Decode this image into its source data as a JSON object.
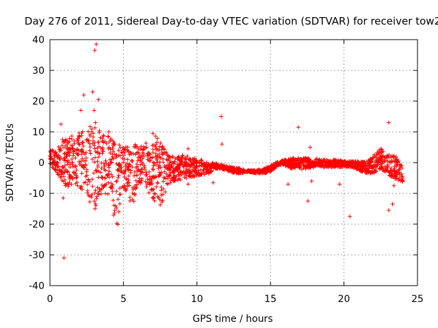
{
  "chart_data": {
    "type": "scatter",
    "title": "Day 276 of 2011, Sidereal Day-to-day VTEC variation (SDTVAR) for receiver tow2",
    "xlabel": "GPS time / hours",
    "ylabel": "SDTVAR / TECUs",
    "xlim": [
      0,
      25
    ],
    "ylim": [
      -40,
      40
    ],
    "xticks": [
      0,
      5,
      10,
      15,
      20,
      25
    ],
    "yticks": [
      -40,
      -30,
      -20,
      -10,
      0,
      10,
      20,
      30,
      40
    ],
    "grid": true,
    "marker": "+",
    "color": "#ff0000",
    "bands": [
      {
        "x": [
          0.0,
          0.4,
          0.8,
          1.2,
          1.6,
          2.0,
          2.4,
          2.8,
          3.2,
          3.6,
          4.0,
          4.4,
          4.6,
          4.8,
          5.2,
          5.6,
          6.0,
          6.4,
          6.8,
          7.2,
          7.6,
          8.0,
          8.5,
          9.0,
          9.5,
          10.0,
          10.5,
          11.0
        ],
        "upper": [
          4.5,
          3.5,
          7.5,
          9.0,
          8.5,
          10.5,
          11.5,
          14.0,
          12.0,
          9.5,
          8.5,
          6.5,
          7.0,
          5.5,
          6.0,
          7.0,
          5.5,
          6.0,
          7.5,
          9.0,
          6.0,
          3.0,
          2.0,
          2.5,
          2.0,
          1.5,
          0.5,
          -0.5
        ],
        "lower": [
          -1.0,
          -3.0,
          -6.0,
          -9.0,
          -7.0,
          -8.0,
          -11.0,
          -14.0,
          -16.0,
          -8.0,
          -13.0,
          -19.0,
          -21.0,
          -12.0,
          -9.0,
          -15.0,
          -8.0,
          -7.0,
          -11.0,
          -13.0,
          -14.5,
          -8.0,
          -6.0,
          -5.5,
          -5.0,
          -4.5,
          -4.0,
          -3.5
        ]
      },
      {
        "x": [
          11.0,
          11.5,
          12.0,
          12.5,
          13.0,
          13.5,
          14.0,
          14.5,
          15.0,
          15.5,
          16.0
        ],
        "upper": [
          0.0,
          -0.5,
          -1.0,
          -1.5,
          -2.0,
          -2.5,
          -2.5,
          -2.0,
          -1.0,
          0.5,
          1.0
        ],
        "lower": [
          -2.0,
          -2.0,
          -2.5,
          -3.5,
          -3.5,
          -3.0,
          -3.5,
          -3.5,
          -3.0,
          -1.0,
          -0.5
        ]
      },
      {
        "x": [
          16.0,
          16.5,
          17.0,
          17.5,
          18.0,
          18.5,
          19.0,
          19.5,
          20.0,
          20.5,
          21.0,
          21.5,
          22.0,
          22.5,
          23.0,
          23.5,
          24.0
        ],
        "upper": [
          1.0,
          1.5,
          1.5,
          1.5,
          1.5,
          1.0,
          1.0,
          1.0,
          0.5,
          0.5,
          0.5,
          0.5,
          2.5,
          4.5,
          2.5,
          2.5,
          -1.0
        ],
        "lower": [
          -1.5,
          -2.0,
          -2.5,
          -2.0,
          -1.5,
          -1.5,
          -1.5,
          -1.5,
          -1.5,
          -1.5,
          -2.5,
          -3.5,
          -3.5,
          -2.0,
          -4.0,
          -5.5,
          -6.5
        ]
      }
    ],
    "outliers": [
      [
        0.75,
        12.5
      ],
      [
        0.9,
        -11.5
      ],
      [
        0.95,
        -31.0
      ],
      [
        1.2,
        5.0
      ],
      [
        2.1,
        17.0
      ],
      [
        2.3,
        22.0
      ],
      [
        2.9,
        23.0
      ],
      [
        3.0,
        17.0
      ],
      [
        3.05,
        36.5
      ],
      [
        3.15,
        38.5
      ],
      [
        3.3,
        20.5
      ],
      [
        3.1,
        13.0
      ],
      [
        3.2,
        -11.0
      ],
      [
        4.0,
        10.0
      ],
      [
        7.0,
        9.5
      ],
      [
        9.4,
        4.5
      ],
      [
        9.4,
        -7.0
      ],
      [
        11.1,
        -6.5
      ],
      [
        11.65,
        15.0
      ],
      [
        11.7,
        6.0
      ],
      [
        16.2,
        -7.0
      ],
      [
        16.9,
        11.5
      ],
      [
        17.55,
        -12.5
      ],
      [
        17.7,
        5.0
      ],
      [
        17.8,
        -6.0
      ],
      [
        19.7,
        -7.0
      ],
      [
        20.4,
        -17.5
      ],
      [
        23.05,
        13.0
      ],
      [
        23.05,
        -15.5
      ],
      [
        23.3,
        -13.5
      ],
      [
        23.4,
        -7.5
      ],
      [
        23.9,
        -5.5
      ]
    ]
  }
}
